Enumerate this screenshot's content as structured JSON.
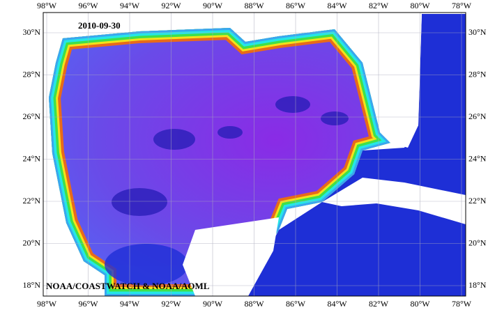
{
  "map": {
    "date": "2010-09-30",
    "credit": "NOAA/COASTWATCH & NOAA/AOML",
    "lon_labels": [
      "98°W",
      "96°W",
      "94°W",
      "92°W",
      "90°W",
      "88°W",
      "86°W",
      "84°W",
      "82°W",
      "80°W",
      "78°W"
    ],
    "lat_labels": [
      "30°N",
      "28°N",
      "26°N",
      "24°N",
      "22°N",
      "20°N",
      "18°N"
    ]
  }
}
